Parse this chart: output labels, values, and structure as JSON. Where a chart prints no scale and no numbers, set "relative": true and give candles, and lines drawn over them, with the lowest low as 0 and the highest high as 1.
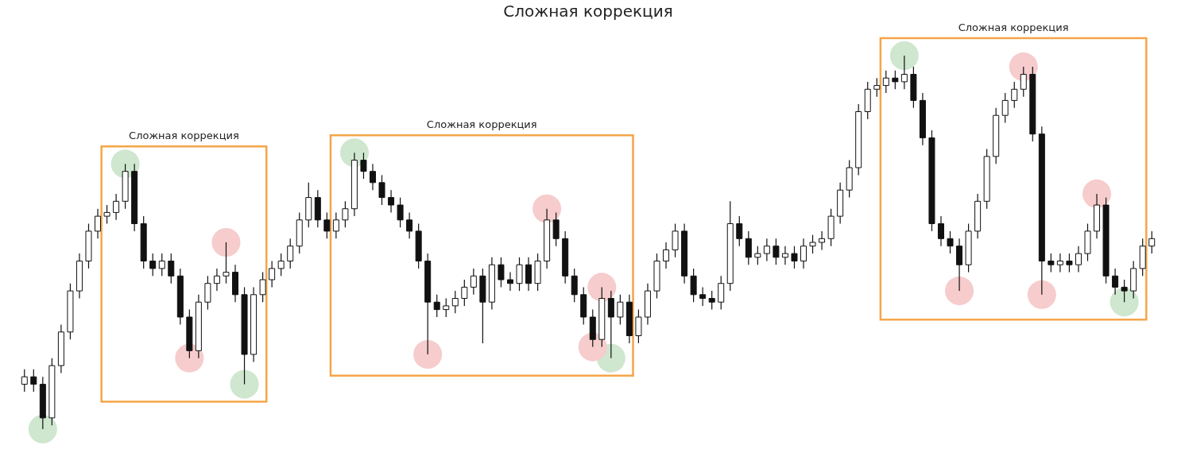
{
  "chart_data": {
    "type": "candlestick",
    "title": "Сложная коррекция",
    "relative": true,
    "categories": [
      null,
      null,
      null,
      null,
      null,
      null,
      null,
      null,
      null,
      null,
      null,
      null,
      null,
      null,
      null,
      null,
      null,
      null,
      null,
      null,
      null,
      null,
      null,
      null,
      null,
      null,
      null,
      null,
      null,
      null,
      null,
      null,
      null,
      null,
      null,
      null,
      null,
      null,
      null,
      null,
      null,
      null,
      null,
      null,
      null,
      null,
      null,
      null,
      null,
      null,
      null,
      null,
      null,
      null,
      null,
      null,
      null,
      null,
      null,
      null,
      null,
      null,
      null,
      null,
      null,
      null,
      null,
      null,
      null,
      null,
      null,
      null,
      null,
      null,
      null,
      null,
      null,
      null,
      null,
      null,
      null,
      null,
      null,
      null,
      null,
      null,
      null,
      null,
      null,
      null,
      null,
      null,
      null,
      null,
      null,
      null,
      null,
      null,
      null,
      null,
      null,
      null,
      null,
      null,
      null,
      null,
      null,
      null,
      null,
      null,
      null,
      null,
      null,
      null,
      null,
      null,
      null,
      null,
      null,
      null,
      null,
      null,
      null,
      null
    ],
    "ohlc": [
      [
        0.12,
        0.16,
        0.1,
        0.14
      ],
      [
        0.14,
        0.16,
        0.1,
        0.12
      ],
      [
        0.12,
        0.14,
        0.0,
        0.03
      ],
      [
        0.03,
        0.19,
        0.01,
        0.17
      ],
      [
        0.17,
        0.28,
        0.15,
        0.26
      ],
      [
        0.26,
        0.39,
        0.24,
        0.37
      ],
      [
        0.37,
        0.47,
        0.35,
        0.45
      ],
      [
        0.45,
        0.55,
        0.43,
        0.53
      ],
      [
        0.53,
        0.59,
        0.51,
        0.57
      ],
      [
        0.57,
        0.6,
        0.55,
        0.58
      ],
      [
        0.58,
        0.63,
        0.56,
        0.61
      ],
      [
        0.61,
        0.71,
        0.59,
        0.69
      ],
      [
        0.69,
        0.71,
        0.53,
        0.55
      ],
      [
        0.55,
        0.57,
        0.43,
        0.45
      ],
      [
        0.45,
        0.47,
        0.41,
        0.43
      ],
      [
        0.43,
        0.47,
        0.41,
        0.45
      ],
      [
        0.45,
        0.47,
        0.39,
        0.41
      ],
      [
        0.41,
        0.43,
        0.28,
        0.3
      ],
      [
        0.3,
        0.32,
        0.19,
        0.21
      ],
      [
        0.21,
        0.36,
        0.19,
        0.34
      ],
      [
        0.34,
        0.41,
        0.32,
        0.39
      ],
      [
        0.39,
        0.43,
        0.37,
        0.41
      ],
      [
        0.41,
        0.5,
        0.39,
        0.42
      ],
      [
        0.42,
        0.44,
        0.34,
        0.36
      ],
      [
        0.36,
        0.38,
        0.12,
        0.2
      ],
      [
        0.2,
        0.38,
        0.18,
        0.36
      ],
      [
        0.36,
        0.42,
        0.34,
        0.4
      ],
      [
        0.4,
        0.45,
        0.38,
        0.43
      ],
      [
        0.43,
        0.47,
        0.41,
        0.45
      ],
      [
        0.45,
        0.51,
        0.43,
        0.49
      ],
      [
        0.49,
        0.58,
        0.47,
        0.56
      ],
      [
        0.56,
        0.66,
        0.54,
        0.62
      ],
      [
        0.62,
        0.64,
        0.54,
        0.56
      ],
      [
        0.56,
        0.58,
        0.51,
        0.53
      ],
      [
        0.53,
        0.58,
        0.51,
        0.56
      ],
      [
        0.56,
        0.61,
        0.54,
        0.59
      ],
      [
        0.59,
        0.74,
        0.57,
        0.72
      ],
      [
        0.72,
        0.74,
        0.67,
        0.69
      ],
      [
        0.69,
        0.71,
        0.64,
        0.66
      ],
      [
        0.66,
        0.68,
        0.6,
        0.62
      ],
      [
        0.62,
        0.64,
        0.58,
        0.6
      ],
      [
        0.6,
        0.62,
        0.54,
        0.56
      ],
      [
        0.56,
        0.58,
        0.51,
        0.53
      ],
      [
        0.53,
        0.55,
        0.43,
        0.45
      ],
      [
        0.45,
        0.47,
        0.2,
        0.34
      ],
      [
        0.34,
        0.36,
        0.3,
        0.32
      ],
      [
        0.32,
        0.35,
        0.3,
        0.33
      ],
      [
        0.33,
        0.37,
        0.31,
        0.35
      ],
      [
        0.35,
        0.4,
        0.33,
        0.38
      ],
      [
        0.38,
        0.43,
        0.36,
        0.41
      ],
      [
        0.41,
        0.43,
        0.23,
        0.34
      ],
      [
        0.34,
        0.46,
        0.32,
        0.44
      ],
      [
        0.44,
        0.46,
        0.38,
        0.4
      ],
      [
        0.4,
        0.42,
        0.37,
        0.39
      ],
      [
        0.39,
        0.46,
        0.37,
        0.44
      ],
      [
        0.44,
        0.46,
        0.37,
        0.39
      ],
      [
        0.39,
        0.47,
        0.37,
        0.45
      ],
      [
        0.45,
        0.59,
        0.43,
        0.56
      ],
      [
        0.56,
        0.58,
        0.49,
        0.51
      ],
      [
        0.51,
        0.53,
        0.39,
        0.41
      ],
      [
        0.41,
        0.43,
        0.34,
        0.36
      ],
      [
        0.36,
        0.38,
        0.28,
        0.3
      ],
      [
        0.3,
        0.32,
        0.22,
        0.24
      ],
      [
        0.24,
        0.38,
        0.22,
        0.35
      ],
      [
        0.35,
        0.37,
        0.19,
        0.3
      ],
      [
        0.3,
        0.36,
        0.28,
        0.34
      ],
      [
        0.34,
        0.36,
        0.23,
        0.25
      ],
      [
        0.25,
        0.32,
        0.23,
        0.3
      ],
      [
        0.3,
        0.39,
        0.28,
        0.37
      ],
      [
        0.37,
        0.47,
        0.35,
        0.45
      ],
      [
        0.45,
        0.5,
        0.43,
        0.48
      ],
      [
        0.48,
        0.55,
        0.46,
        0.53
      ],
      [
        0.53,
        0.55,
        0.39,
        0.41
      ],
      [
        0.41,
        0.43,
        0.34,
        0.36
      ],
      [
        0.36,
        0.38,
        0.33,
        0.35
      ],
      [
        0.35,
        0.37,
        0.32,
        0.34
      ],
      [
        0.34,
        0.41,
        0.32,
        0.39
      ],
      [
        0.39,
        0.61,
        0.37,
        0.55
      ],
      [
        0.55,
        0.57,
        0.49,
        0.51
      ],
      [
        0.51,
        0.53,
        0.44,
        0.46
      ],
      [
        0.46,
        0.49,
        0.44,
        0.47
      ],
      [
        0.47,
        0.51,
        0.45,
        0.49
      ],
      [
        0.49,
        0.51,
        0.44,
        0.46
      ],
      [
        0.46,
        0.49,
        0.44,
        0.47
      ],
      [
        0.47,
        0.49,
        0.43,
        0.45
      ],
      [
        0.45,
        0.51,
        0.43,
        0.49
      ],
      [
        0.49,
        0.52,
        0.47,
        0.5
      ],
      [
        0.5,
        0.53,
        0.48,
        0.51
      ],
      [
        0.51,
        0.59,
        0.49,
        0.57
      ],
      [
        0.57,
        0.66,
        0.55,
        0.64
      ],
      [
        0.64,
        0.72,
        0.62,
        0.7
      ],
      [
        0.7,
        0.87,
        0.68,
        0.85
      ],
      [
        0.85,
        0.93,
        0.83,
        0.91
      ],
      [
        0.91,
        0.94,
        0.89,
        0.92
      ],
      [
        0.92,
        0.96,
        0.9,
        0.94
      ],
      [
        0.94,
        0.96,
        0.91,
        0.93
      ],
      [
        0.93,
        1.0,
        0.91,
        0.95
      ],
      [
        0.95,
        0.97,
        0.86,
        0.88
      ],
      [
        0.88,
        0.9,
        0.76,
        0.78
      ],
      [
        0.78,
        0.8,
        0.53,
        0.55
      ],
      [
        0.55,
        0.57,
        0.49,
        0.51
      ],
      [
        0.51,
        0.53,
        0.47,
        0.49
      ],
      [
        0.49,
        0.51,
        0.37,
        0.44
      ],
      [
        0.44,
        0.55,
        0.42,
        0.53
      ],
      [
        0.53,
        0.63,
        0.51,
        0.61
      ],
      [
        0.61,
        0.75,
        0.59,
        0.73
      ],
      [
        0.73,
        0.86,
        0.71,
        0.84
      ],
      [
        0.84,
        0.9,
        0.82,
        0.88
      ],
      [
        0.88,
        0.93,
        0.86,
        0.91
      ],
      [
        0.91,
        0.97,
        0.89,
        0.95
      ],
      [
        0.95,
        0.97,
        0.77,
        0.79
      ],
      [
        0.79,
        0.81,
        0.36,
        0.45
      ],
      [
        0.45,
        0.47,
        0.42,
        0.44
      ],
      [
        0.44,
        0.47,
        0.42,
        0.45
      ],
      [
        0.45,
        0.47,
        0.42,
        0.44
      ],
      [
        0.44,
        0.49,
        0.42,
        0.47
      ],
      [
        0.47,
        0.55,
        0.45,
        0.53
      ],
      [
        0.53,
        0.63,
        0.51,
        0.6
      ],
      [
        0.6,
        0.62,
        0.39,
        0.41
      ],
      [
        0.41,
        0.43,
        0.36,
        0.38
      ],
      [
        0.38,
        0.4,
        0.34,
        0.37
      ],
      [
        0.37,
        0.45,
        0.35,
        0.43
      ],
      [
        0.43,
        0.51,
        0.41,
        0.49
      ],
      [
        0.49,
        0.53,
        0.47,
        0.51
      ]
    ],
    "series": [
      {
        "type": "scatter",
        "color": "#cfe6cf",
        "values": [
          null,
          null,
          0.0,
          null,
          null,
          null,
          null,
          null,
          null,
          null,
          null,
          0.71,
          null,
          null,
          null,
          null,
          null,
          null,
          null,
          null,
          null,
          null,
          null,
          null,
          0.12,
          null,
          null,
          null,
          null,
          null,
          null,
          null,
          null,
          null,
          null,
          null,
          0.74,
          null,
          null,
          null,
          null,
          null,
          null,
          null,
          null,
          null,
          null,
          null,
          null,
          null,
          null,
          null,
          null,
          null,
          null,
          null,
          null,
          null,
          null,
          null,
          null,
          null,
          null,
          null,
          0.19,
          null,
          null,
          null,
          null,
          null,
          null,
          null,
          null,
          null,
          null,
          null,
          null,
          null,
          null,
          null,
          null,
          null,
          null,
          null,
          null,
          null,
          null,
          null,
          null,
          null,
          null,
          null,
          null,
          null,
          null,
          null,
          1.0,
          null,
          null,
          null,
          null,
          null,
          null,
          null,
          null,
          null,
          null,
          null,
          null,
          null,
          null,
          null,
          null,
          null,
          null,
          null,
          null,
          null,
          null,
          null,
          0.34,
          null,
          null,
          null
        ]
      },
      {
        "type": "scatter",
        "color": "#f6cccc",
        "values": [
          null,
          null,
          null,
          null,
          null,
          null,
          null,
          null,
          null,
          null,
          null,
          null,
          null,
          null,
          null,
          null,
          null,
          null,
          0.19,
          null,
          null,
          null,
          0.5,
          null,
          null,
          null,
          null,
          null,
          null,
          null,
          null,
          null,
          null,
          null,
          null,
          null,
          null,
          null,
          null,
          null,
          null,
          null,
          null,
          null,
          0.2,
          null,
          null,
          null,
          null,
          null,
          null,
          null,
          null,
          null,
          null,
          null,
          null,
          0.59,
          null,
          null,
          null,
          null,
          0.22,
          0.38,
          null,
          null,
          null,
          null,
          null,
          null,
          null,
          null,
          null,
          null,
          null,
          null,
          null,
          null,
          null,
          null,
          null,
          null,
          null,
          null,
          null,
          null,
          null,
          null,
          null,
          null,
          null,
          null,
          null,
          null,
          null,
          null,
          null,
          null,
          null,
          null,
          null,
          null,
          0.37,
          null,
          null,
          null,
          null,
          null,
          null,
          0.97,
          null,
          0.36,
          null,
          null,
          null,
          null,
          null,
          0.63,
          null,
          null,
          null,
          null,
          null,
          null
        ]
      }
    ],
    "annotations": [
      "Сложная коррекция",
      "Сложная коррекция",
      "Сложная коррекция"
    ]
  }
}
